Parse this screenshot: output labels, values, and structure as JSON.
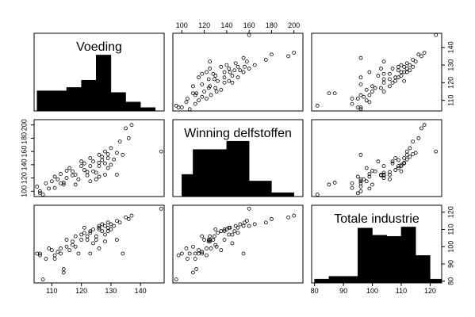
{
  "chart_data": {
    "type": "scatter-matrix",
    "variables": [
      {
        "label": "Voeding",
        "range": [
          104,
          148
        ],
        "ticks": [
          110,
          120,
          130,
          140
        ],
        "histogram": {
          "edges": [
            105,
            110,
            115,
            120,
            125,
            130,
            135,
            140,
            145
          ],
          "density": [
            0.36,
            0.36,
            0.42,
            0.55,
            1.0,
            0.33,
            0.16,
            0.06
          ]
        }
      },
      {
        "label": "Winning delfstoffen",
        "range": [
          92,
          208
        ],
        "ticks": [
          100,
          120,
          140,
          160,
          180,
          200
        ],
        "histogram": {
          "edges": [
            100,
            110,
            120,
            140,
            150,
            160,
            170,
            180,
            190,
            200
          ],
          "density": [
            0.4,
            0.85,
            0.85,
            1.0,
            1.0,
            0.28,
            0.28,
            0.07,
            0.07
          ],
          "note_edges_ok": ""
        }
      },
      {
        "label": "Totale industrie",
        "range": [
          79,
          124
        ],
        "ticks": [
          80,
          90,
          100,
          110,
          120
        ],
        "histogram": {
          "edges": [
            80,
            85,
            90,
            95,
            100,
            105,
            110,
            115,
            120,
            125
          ],
          "density": [
            0.07,
            0.12,
            0.12,
            1.0,
            0.87,
            0.85,
            1.02,
            0.5,
            0.07
          ]
        }
      }
    ],
    "observations": [
      [
        105,
        107,
        96
      ],
      [
        106,
        97,
        95
      ],
      [
        106,
        100,
        96
      ],
      [
        107,
        95,
        81
      ],
      [
        108,
        112,
        93
      ],
      [
        109,
        104,
        99
      ],
      [
        110,
        115,
        98
      ],
      [
        111,
        122,
        95
      ],
      [
        112,
        118,
        97
      ],
      [
        113,
        126,
        99
      ],
      [
        113,
        112,
        96
      ],
      [
        114,
        113,
        87
      ],
      [
        114,
        110,
        85
      ],
      [
        115,
        131,
        100
      ],
      [
        115,
        120,
        104
      ],
      [
        116,
        135,
        98
      ],
      [
        117,
        124,
        103
      ],
      [
        117,
        130,
        101
      ],
      [
        118,
        125,
        106
      ],
      [
        119,
        118,
        96
      ],
      [
        120,
        138,
        104
      ],
      [
        120,
        145,
        107
      ],
      [
        121,
        132,
        108
      ],
      [
        122,
        129,
        106
      ],
      [
        122,
        124,
        104
      ],
      [
        123,
        138,
        109
      ],
      [
        123,
        150,
        108
      ],
      [
        124,
        145,
        102
      ],
      [
        124,
        130,
        110
      ],
      [
        125,
        128,
        104
      ],
      [
        125,
        118,
        106
      ],
      [
        126,
        155,
        112
      ],
      [
        126,
        143,
        111
      ],
      [
        126,
        138,
        110
      ],
      [
        127,
        147,
        109
      ],
      [
        127,
        152,
        113
      ],
      [
        128,
        160,
        112
      ],
      [
        128,
        142,
        107
      ],
      [
        128,
        125,
        103
      ],
      [
        129,
        156,
        114
      ],
      [
        129,
        150,
        111
      ],
      [
        130,
        165,
        113
      ],
      [
        130,
        140,
        110
      ],
      [
        131,
        148,
        112
      ],
      [
        132,
        125,
        104
      ],
      [
        132,
        158,
        115
      ],
      [
        133,
        175,
        114
      ],
      [
        134,
        155,
        96
      ],
      [
        135,
        195,
        117
      ],
      [
        136,
        180,
        116
      ],
      [
        137,
        200,
        118
      ],
      [
        147,
        160,
        122
      ],
      [
        126,
        122,
        99
      ],
      [
        123,
        115,
        96
      ],
      [
        111,
        105,
        93
      ],
      [
        129,
        135,
        109
      ],
      [
        121,
        142,
        111
      ],
      [
        118,
        110,
        100
      ]
    ]
  }
}
